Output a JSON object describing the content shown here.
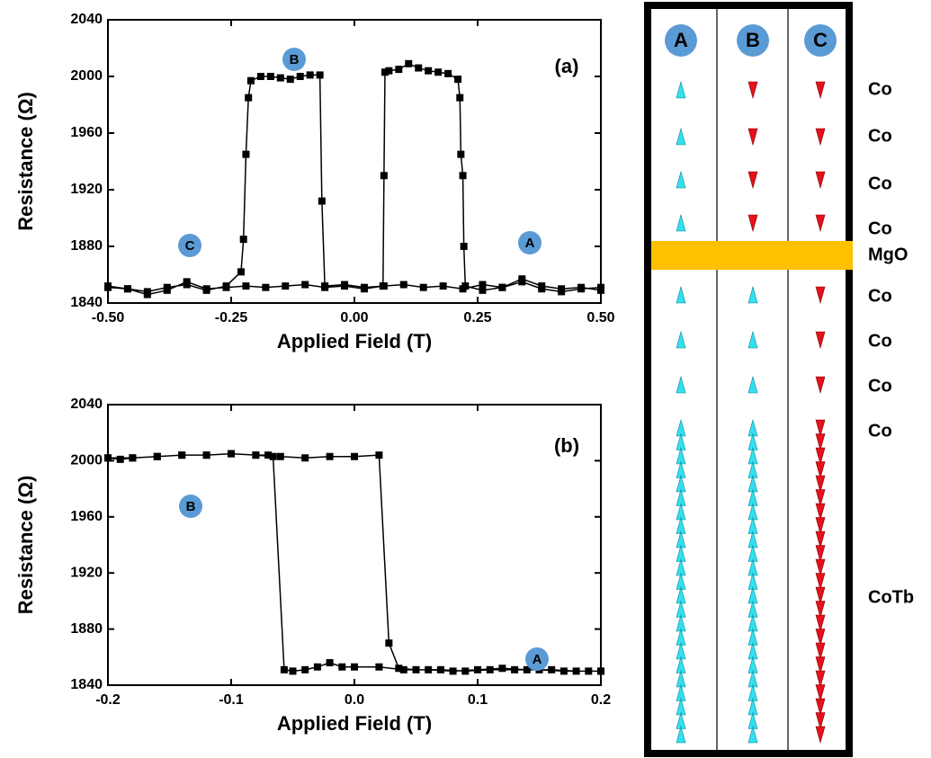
{
  "chart_data": [
    {
      "type": "line",
      "panel_label": "(a)",
      "xlabel": "Applied Field (T)",
      "ylabel": "Resistance (Ω)",
      "annotations": [
        "B",
        "C",
        "A"
      ],
      "x": [
        -0.5,
        -0.46,
        -0.42,
        -0.38,
        -0.34,
        -0.3,
        -0.26,
        -0.23,
        -0.225,
        -0.22,
        -0.215,
        -0.21,
        -0.19,
        -0.17,
        -0.15,
        -0.13,
        -0.11,
        -0.09,
        -0.07,
        -0.066,
        -0.06,
        -0.02,
        0.02,
        0.06,
        0.1,
        0.14,
        0.18,
        0.22,
        0.26,
        0.3,
        0.34,
        0.38,
        0.42,
        0.46,
        0.5,
        0.5,
        0.46,
        0.42,
        0.38,
        0.34,
        0.3,
        0.26,
        0.225,
        0.222,
        0.22,
        0.216,
        0.214,
        0.21,
        0.19,
        0.17,
        0.15,
        0.13,
        0.11,
        0.09,
        0.07,
        0.062,
        0.06,
        0.058,
        0.02,
        -0.02,
        -0.06,
        -0.1,
        -0.14,
        -0.18,
        -0.22,
        -0.26,
        -0.3,
        -0.34,
        -0.38,
        -0.42,
        -0.46,
        -0.5
      ],
      "values": [
        1852,
        1850,
        1848,
        1851,
        1853,
        1849,
        1852,
        1862,
        1885,
        1945,
        1985,
        1997,
        2000,
        2000,
        1999,
        1998,
        2000,
        2001,
        2001,
        1912,
        1852,
        1853,
        1851,
        1852,
        1853,
        1851,
        1852,
        1850,
        1853,
        1851,
        1855,
        1850,
        1848,
        1850,
        1851,
        1849,
        1851,
        1850,
        1852,
        1857,
        1851,
        1849,
        1852,
        1880,
        1930,
        1945,
        1985,
        1998,
        2002,
        2003,
        2004,
        2006,
        2009,
        2005,
        2004,
        2003,
        1930,
        1852,
        1850,
        1852,
        1851,
        1853,
        1852,
        1851,
        1852,
        1851,
        1850,
        1855,
        1849,
        1846,
        1850,
        1851
      ],
      "color": "#000000",
      "xlim": [
        -0.5,
        0.5
      ],
      "xticks": [
        {
          "value": -0.5,
          "label": "-0.50"
        },
        {
          "value": -0.25,
          "label": "-0.25"
        },
        {
          "value": 0,
          "label": "0.00"
        },
        {
          "value": 0.25,
          "label": "0.25"
        },
        {
          "value": 0.5,
          "label": "0.50"
        }
      ],
      "ylim": [
        1840,
        2040
      ],
      "yticks": [
        1840,
        1880,
        1920,
        1960,
        2000,
        2040
      ]
    },
    {
      "type": "line",
      "panel_label": "(b)",
      "xlabel": "Applied Field (T)",
      "ylabel": "Resistance (Ω)",
      "annotations": [
        "B",
        "A"
      ],
      "x": [
        -0.2,
        -0.19,
        -0.18,
        -0.16,
        -0.14,
        -0.12,
        -0.1,
        -0.08,
        -0.07,
        -0.06,
        -0.04,
        -0.02,
        0,
        0.02,
        0.028,
        0.036,
        0.05,
        0.07,
        0.09,
        0.11,
        0.13,
        0.15,
        0.17,
        0.19,
        0.2,
        0.2,
        0.18,
        0.16,
        0.14,
        0.12,
        0.1,
        0.08,
        0.06,
        0.04,
        0.02,
        0,
        -0.01,
        -0.02,
        -0.03,
        -0.04,
        -0.05,
        -0.057,
        -0.066,
        -0.08,
        -0.1,
        -0.12,
        -0.14,
        -0.16,
        -0.18,
        -0.2
      ],
      "values": [
        2002,
        2001,
        2002,
        2003,
        2004,
        2004,
        2005,
        2004,
        2004,
        2003,
        2002,
        2003,
        2003,
        2004,
        1870,
        1852,
        1851,
        1851,
        1850,
        1851,
        1851,
        1851,
        1850,
        1850,
        1850,
        1850,
        1850,
        1851,
        1851,
        1852,
        1851,
        1850,
        1851,
        1851,
        1853,
        1853,
        1853,
        1856,
        1853,
        1851,
        1850,
        1851,
        2003,
        2004,
        2005,
        2004,
        2004,
        2003,
        2002,
        2002
      ],
      "color": "#000000",
      "xlim": [
        -0.2,
        0.2
      ],
      "xticks": [
        -0.2,
        -0.1,
        {
          "value": 0,
          "label": "0.0"
        },
        0.1,
        0.2
      ],
      "ylim": [
        1840,
        2040
      ],
      "yticks": [
        1840,
        1880,
        1920,
        1960,
        2000,
        2040
      ]
    }
  ],
  "diagram": {
    "columns": [
      "A",
      "B",
      "C"
    ],
    "layers": [
      "Co",
      "Co",
      "Co",
      "Co",
      "MgO",
      "Co",
      "Co",
      "Co",
      "Co",
      "CoTb"
    ]
  }
}
